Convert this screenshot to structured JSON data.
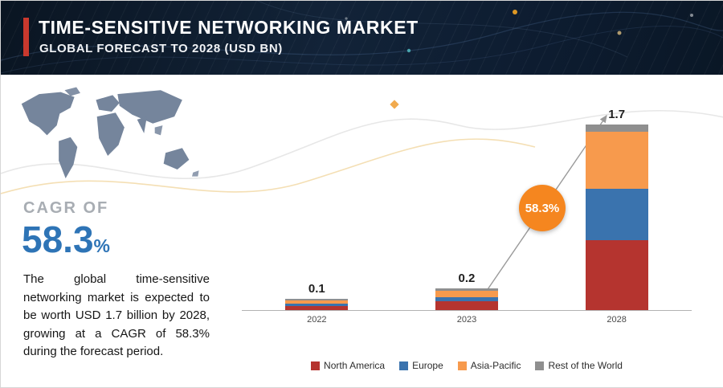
{
  "header": {
    "title": "TIME-SENSITIVE NETWORKING MARKET",
    "subtitle": "GLOBAL FORECAST TO 2028 (USD BN)"
  },
  "left_panel": {
    "cagr_label": "CAGR OF",
    "cagr_value": "58.3",
    "cagr_percent": "%",
    "description": "The global time-sensitive networking market is expected to be worth USD 1.7 billion by 2028, growing at a CAGR of 58.3% during the forecast period."
  },
  "badge": {
    "label": "58.3%",
    "color": "#f5861f"
  },
  "colors": {
    "accent_red": "#c9392e",
    "cagr_blue": "#2e74b6",
    "badge_orange": "#f5861f",
    "header_bg": "#0d1c30"
  },
  "chart_data": {
    "type": "bar",
    "stacked": true,
    "title": "",
    "xlabel": "",
    "ylabel": "",
    "categories": [
      "2022",
      "2023",
      "2028"
    ],
    "series": [
      {
        "name": "North America",
        "color": "#b5342f",
        "values": [
          0.04,
          0.08,
          0.64
        ]
      },
      {
        "name": "Europe",
        "color": "#3a73ae",
        "values": [
          0.02,
          0.04,
          0.47
        ]
      },
      {
        "name": "Asia-Pacific",
        "color": "#f79a4d",
        "values": [
          0.03,
          0.06,
          0.52
        ]
      },
      {
        "name": "Rest of the World",
        "color": "#8f8f8f",
        "values": [
          0.01,
          0.02,
          0.07
        ]
      }
    ],
    "totals": [
      "0.1",
      "0.2",
      "1.7"
    ],
    "ylim": [
      0,
      1.8
    ],
    "grid": false,
    "legend_position": "bottom"
  }
}
